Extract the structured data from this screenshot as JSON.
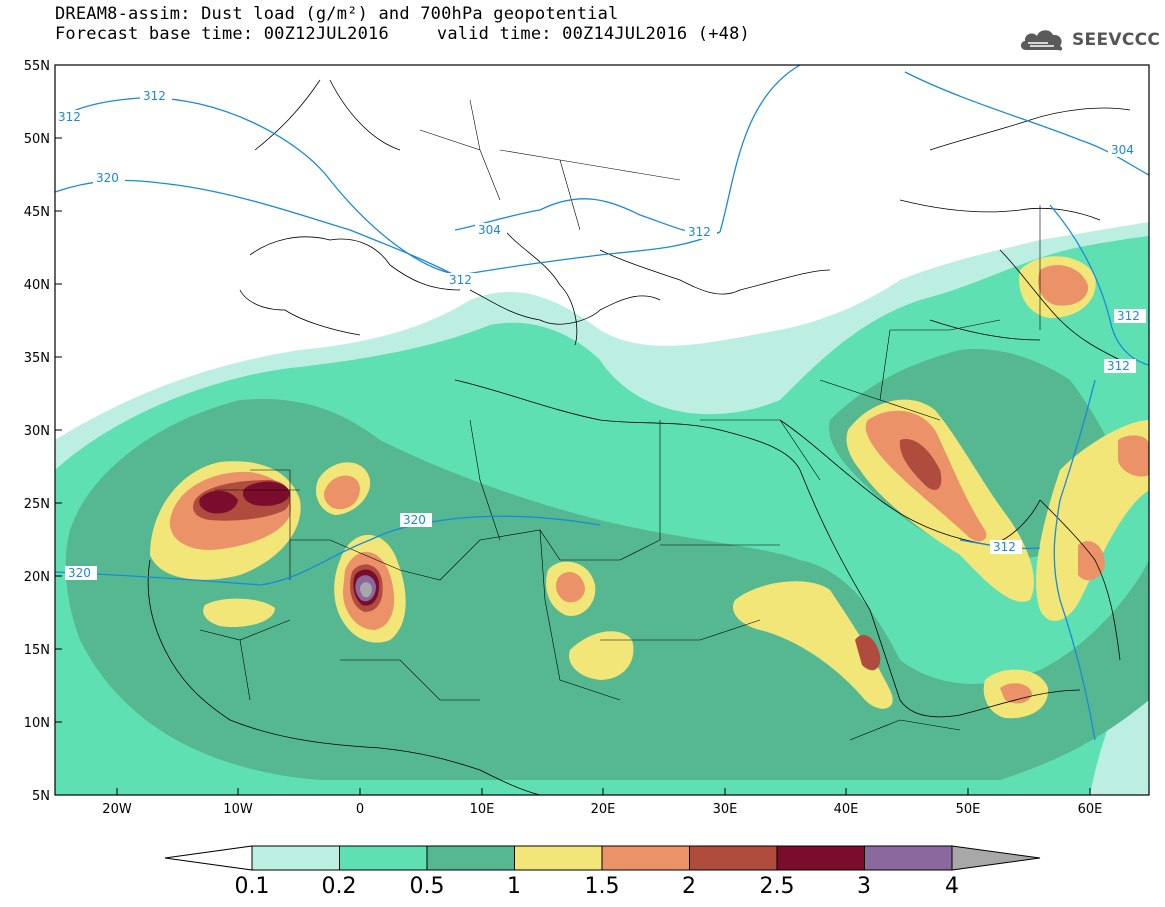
{
  "header": {
    "line1": "DREAM8-assim: Dust load (g/m²) and 700hPa geopotential",
    "base_time": "Forecast base time: 00Z12JUL2016",
    "valid_time": "valid time: 00Z14JUL2016 (+48)",
    "logo": "SEEVCCC"
  },
  "map": {
    "lat_labels": [
      "55N",
      "50N",
      "45N",
      "40N",
      "35N",
      "30N",
      "25N",
      "20N",
      "15N",
      "10N",
      "5N"
    ],
    "lon_labels": [
      "20W",
      "10W",
      "0",
      "10E",
      "20E",
      "30E",
      "40E",
      "50E",
      "60E"
    ],
    "contour_labels": [
      "312",
      "312",
      "320",
      "304",
      "312",
      "312",
      "304",
      "320",
      "320",
      "312",
      "312",
      "312"
    ]
  },
  "colorbar": {
    "ticks": [
      "0.1",
      "0.2",
      "0.5",
      "1",
      "1.5",
      "2",
      "2.5",
      "3",
      "4"
    ],
    "colors": [
      "#bdeee2",
      "#5ee0b2",
      "#55b890",
      "#f2e678",
      "#ec9268",
      "#b04c3e",
      "#7c0c2c",
      "#8a6a9e",
      "#a8a8a8"
    ]
  }
}
